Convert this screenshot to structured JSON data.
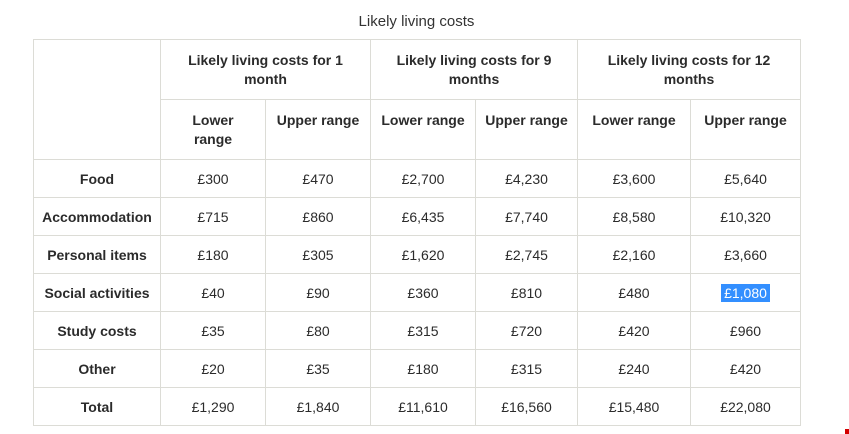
{
  "page": {
    "title": "Likely living costs"
  },
  "table": {
    "column_groups": [
      {
        "label": "Likely living costs for 1 month"
      },
      {
        "label": "Likely living costs for 9 months"
      },
      {
        "label": "Likely living costs for 12 months"
      }
    ],
    "sub_headers": [
      "Lower range",
      "Upper range",
      "Lower range",
      "Upper range",
      "Lower range",
      "Upper range"
    ],
    "rows": [
      {
        "label": "Food",
        "values": [
          "£300",
          "£470",
          "£2,700",
          "£4,230",
          "£3,600",
          "£5,640"
        ]
      },
      {
        "label": "Accommodation",
        "values": [
          "£715",
          "£860",
          "£6,435",
          "£7,740",
          "£8,580",
          "£10,320"
        ]
      },
      {
        "label": "Personal items",
        "values": [
          "£180",
          "£305",
          "£1,620",
          "£2,745",
          "£2,160",
          "£3,660"
        ]
      },
      {
        "label": "Social activities",
        "values": [
          "£40",
          "£90",
          "£360",
          "£810",
          "£480",
          "£1,080"
        ]
      },
      {
        "label": "Study costs",
        "values": [
          "£35",
          "£80",
          "£315",
          "£720",
          "£420",
          "£960"
        ]
      },
      {
        "label": "Other",
        "values": [
          "£20",
          "£35",
          "£180",
          "£315",
          "£240",
          "£420"
        ]
      },
      {
        "label": "Total",
        "values": [
          "£1,290",
          "£1,840",
          "£11,610",
          "£16,560",
          "£15,480",
          "£22,080"
        ]
      }
    ],
    "selected_cell": {
      "row_index": 3,
      "col_index": 5,
      "row_label": "Social activities",
      "column": "Likely living costs for 12 months — Upper range",
      "value": "£1,080"
    }
  },
  "colors": {
    "selection_highlight": "#338fff",
    "selection_text": "#ffffff",
    "table_border": "#dcdcd6",
    "text": "#2b2b2b",
    "corner_mark": "#d40000"
  }
}
